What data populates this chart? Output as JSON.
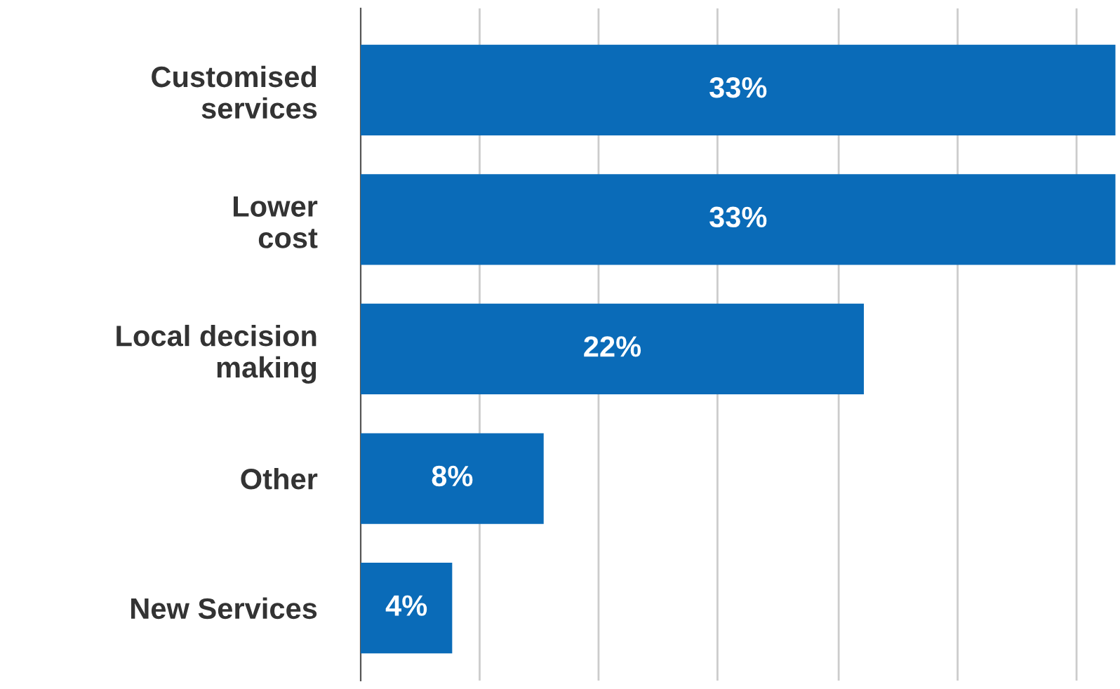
{
  "chart_data": {
    "type": "bar",
    "orientation": "horizontal",
    "categories": [
      "Customised\nservices",
      "Lower\ncost",
      "Local decision\nmaking",
      "Other",
      "New Services"
    ],
    "values": [
      33,
      33,
      22,
      8,
      4
    ],
    "value_labels": [
      "33%",
      "33%",
      "22%",
      "8%",
      "4%"
    ],
    "color": "#0a6bb8",
    "xlim": [
      0,
      33.2
    ],
    "xticks": [
      {
        "value": 5.2,
        "label": null
      },
      {
        "value": 10.4,
        "label": null
      },
      {
        "value": 15.6,
        "label": null
      },
      {
        "value": 20.9,
        "label": null
      },
      {
        "value": 26.1,
        "label": null
      },
      {
        "value": 31.3,
        "label": null
      }
    ],
    "grid": "x",
    "tick_labels": "y"
  }
}
